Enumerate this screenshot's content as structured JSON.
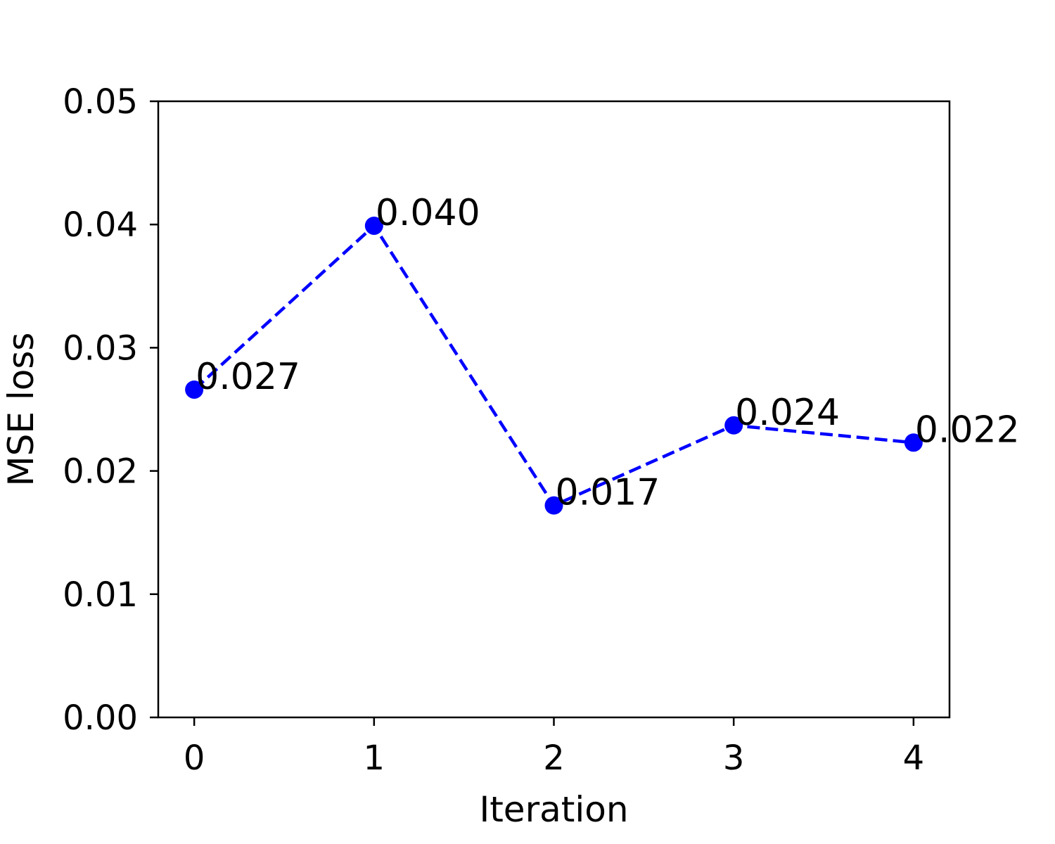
{
  "chart_data": {
    "type": "line",
    "xlabel": "Iteration",
    "ylabel": "MSE loss",
    "x": [
      0,
      1,
      2,
      3,
      4
    ],
    "series": [
      {
        "values": [
          0.0266,
          0.0399,
          0.0172,
          0.0237,
          0.0223
        ],
        "labels": [
          "0.027",
          "0.040",
          "0.017",
          "0.024",
          "0.022"
        ],
        "color": "#0000ff",
        "line_style": "dashed",
        "marker": "circle"
      }
    ],
    "xlim": [
      -0.2,
      4.2
    ],
    "ylim": [
      0.0,
      0.05
    ],
    "xticks": [
      0,
      1,
      2,
      3,
      4
    ],
    "xtick_labels": [
      "0",
      "1",
      "2",
      "3",
      "4"
    ],
    "yticks": [
      0.0,
      0.01,
      0.02,
      0.03,
      0.04,
      0.05
    ],
    "ytick_labels": [
      "0.00",
      "0.01",
      "0.02",
      "0.03",
      "0.04",
      "0.05"
    ],
    "grid": false,
    "legend": false
  }
}
